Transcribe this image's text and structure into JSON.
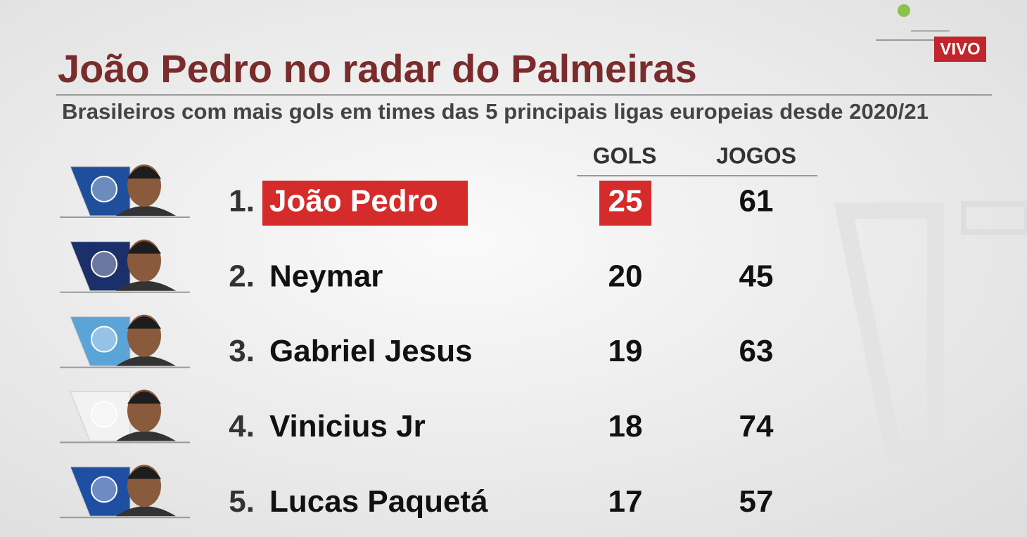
{
  "badge": "VIVO",
  "title": "João Pedro no radar do Palmeiras",
  "subtitle": "Brasileiros com mais gols em times das 5 principais ligas europeias desde 2020/21",
  "table": {
    "headers": [
      "GOLS",
      "JOGOS"
    ],
    "highlighted_row": 0,
    "highlight_color": "#d52b2b",
    "rows": [
      {
        "rank": "1.",
        "name": "João Pedro",
        "gols": 25,
        "jogos": 61,
        "badge_color": "#1f4f9c"
      },
      {
        "rank": "2.",
        "name": "Neymar",
        "gols": 20,
        "jogos": 45,
        "badge_color": "#1b2f6b"
      },
      {
        "rank": "3.",
        "name": "Gabriel Jesus",
        "gols": 19,
        "jogos": 63,
        "badge_color": "#5ba4d8"
      },
      {
        "rank": "4.",
        "name": "Vinicius Jr",
        "gols": 18,
        "jogos": 74,
        "badge_color": "#f2f2f2"
      },
      {
        "rank": "5.",
        "name": "Lucas Paquetá",
        "gols": 17,
        "jogos": 57,
        "badge_color": "#1e4fa3"
      }
    ]
  }
}
